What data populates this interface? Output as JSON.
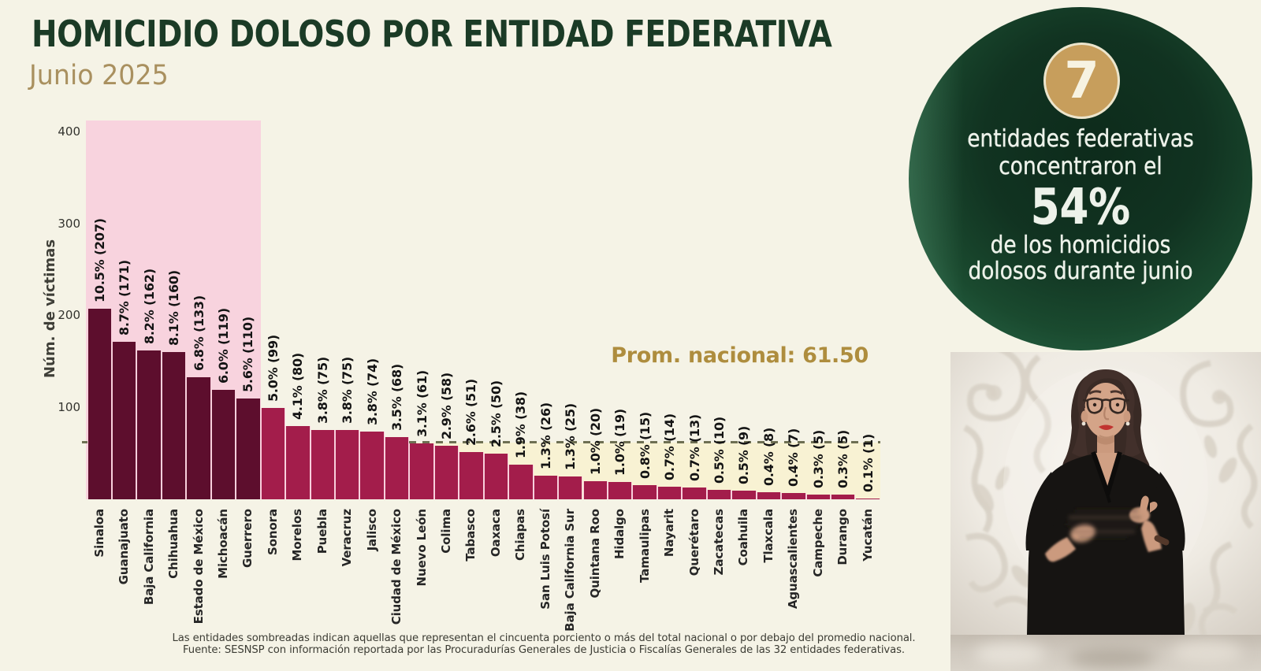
{
  "title": "HOMICIDIO DOLOSO POR ENTIDAD FEDERATIVA",
  "subtitle": "Junio 2025",
  "chart_data": {
    "type": "bar",
    "title": "HOMICIDIO DOLOSO POR ENTIDAD FEDERATIVA",
    "subtitle": "Junio 2025",
    "ylabel": "Núm. de víctimas",
    "yticks": [
      100,
      200,
      300,
      400
    ],
    "ylim": [
      0,
      410
    ],
    "grid": false,
    "average_line": {
      "value": 61.5,
      "label": "Prom. nacional: 61.50",
      "style": "dashed"
    },
    "highlighted_top_states": 7,
    "categories": [
      "Sinaloa",
      "Guanajuato",
      "Baja California",
      "Chihuahua",
      "Estado de México",
      "Michoacán",
      "Guerrero",
      "Sonora",
      "Morelos",
      "Puebla",
      "Veracruz",
      "Jalisco",
      "Ciudad de México",
      "Nuevo León",
      "Colima",
      "Tabasco",
      "Oaxaca",
      "Chiapas",
      "San Luis Potosí",
      "Baja California Sur",
      "Quintana Roo",
      "Hidalgo",
      "Tamaulipas",
      "Nayarit",
      "Querétaro",
      "Zacatecas",
      "Coahuila",
      "Tlaxcala",
      "Aguascalientes",
      "Campeche",
      "Durango",
      "Yucatán"
    ],
    "values": [
      207,
      171,
      162,
      160,
      133,
      119,
      110,
      99,
      80,
      75,
      75,
      74,
      68,
      61,
      58,
      51,
      50,
      38,
      26,
      25,
      20,
      19,
      15,
      14,
      13,
      10,
      9,
      8,
      7,
      5,
      5,
      1
    ],
    "bar_labels": [
      "10.5% (207)",
      "8.7% (171)",
      "8.2% (162)",
      "8.1% (160)",
      "6.8% (133)",
      "6.0% (119)",
      "5.6% (110)",
      "5.0% (99)",
      "4.1% (80)",
      "3.8% (75)",
      "3.8% (75)",
      "3.8% (74)",
      "3.5% (68)",
      "3.1% (61)",
      "2.9% (58)",
      "2.6% (51)",
      "2.5% (50)",
      "1.9% (38)",
      "1.3% (26)",
      "1.3% (25)",
      "1.0% (20)",
      "1.0% (19)",
      "0.8% (15)",
      "0.7% (14)",
      "0.7% (13)",
      "0.5% (10)",
      "0.5% (9)",
      "0.4% (8)",
      "0.4% (7)",
      "0.3% (5)",
      "0.3% (5)",
      "0.1% (1)"
    ],
    "colors": {
      "bar_highlight": "#5d0e2d",
      "bar_normal": "#a31d4b",
      "top_shade": "#f8d3de",
      "below_average_shade": "#f8f2d3",
      "average_dash": "#6e6f52",
      "bar_gap": "#f9cfdc"
    }
  },
  "badge": {
    "number": "7",
    "line1": "entidades federativas",
    "line2": "concentraron el",
    "stat": "54%",
    "line3": "de los homicidios",
    "line4": "dolosos durante junio"
  },
  "footnotes": {
    "line1": "Las entidades sombreadas indican aquellas que representan el cincuenta porciento o más del total nacional o por debajo del promedio nacional.",
    "line2": "Fuente: SESNSP con información reportada por las Procuradurías Generales de Justicia o Fiscalías Generales de las 32 entidades federativas."
  }
}
